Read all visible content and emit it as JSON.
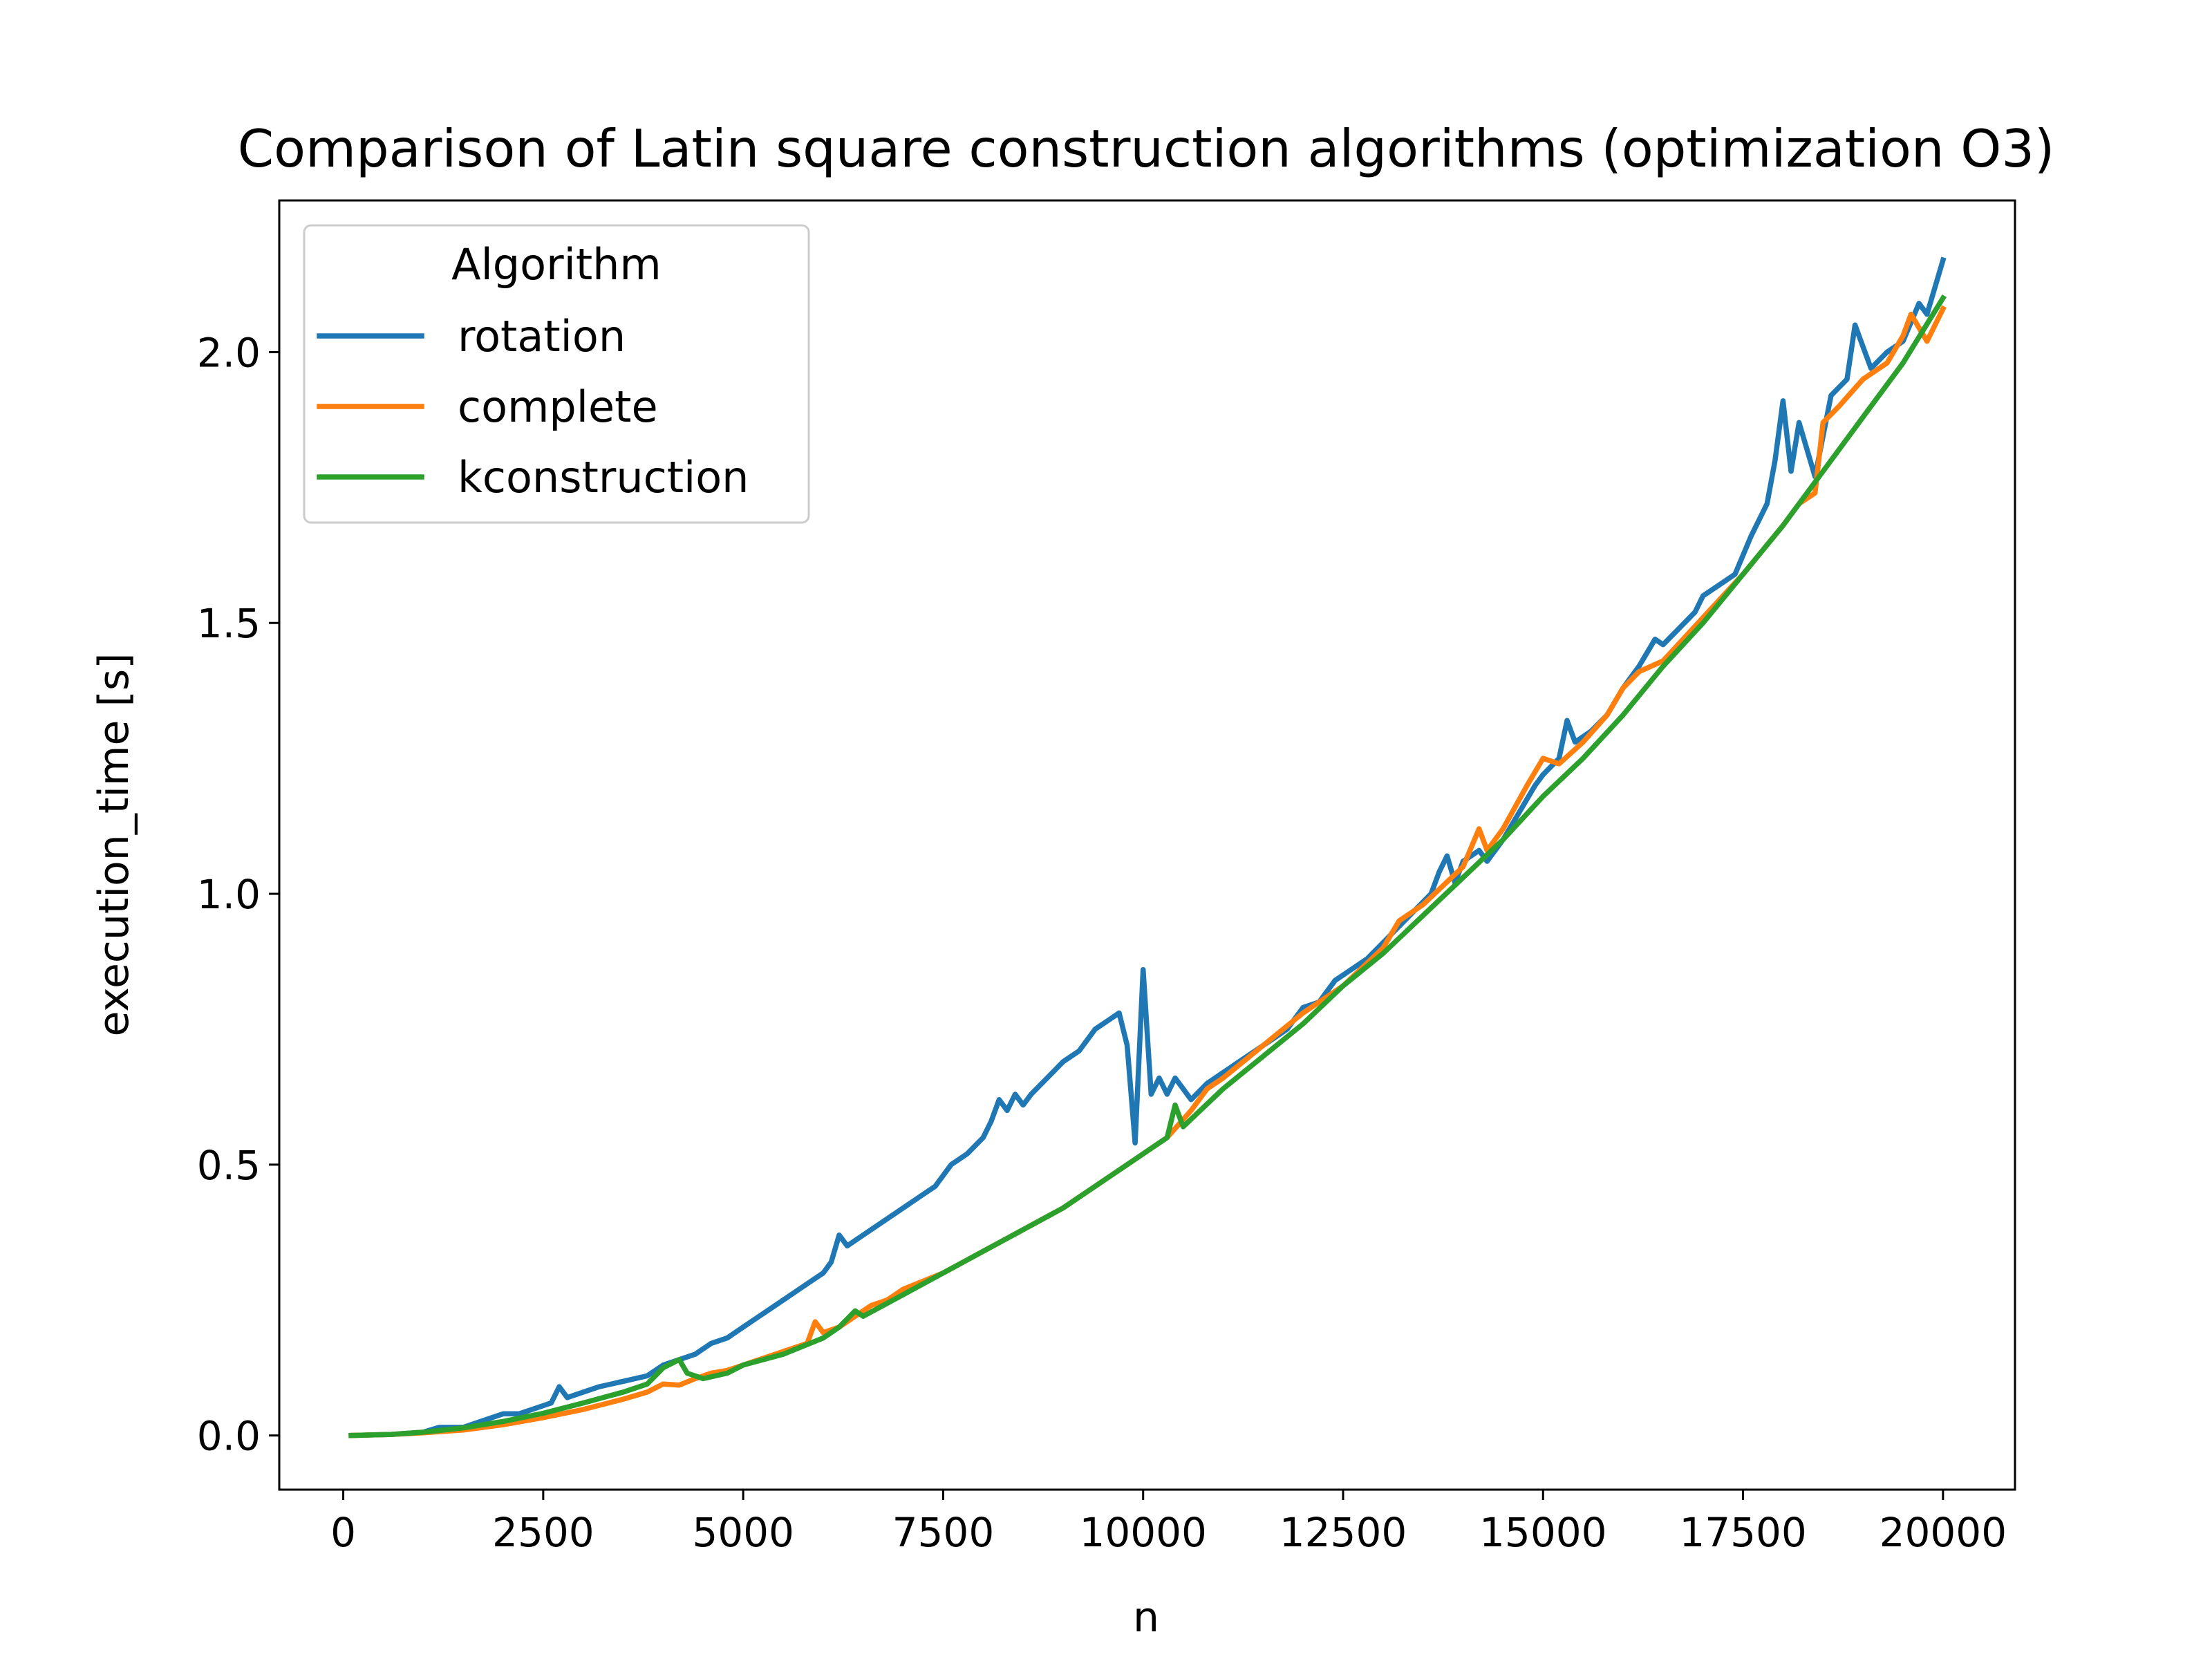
{
  "chart_data": {
    "type": "line",
    "title": "Comparison of Latin square construction algorithms (optimization O3)",
    "xlabel": "n",
    "ylabel": "execution_time [s]",
    "xlim": [
      -800,
      20900
    ],
    "ylim": [
      -0.1,
      2.28
    ],
    "xticks": [
      0,
      2500,
      5000,
      7500,
      10000,
      12500,
      15000,
      17500,
      20000
    ],
    "xtick_labels": [
      "0",
      "2500",
      "5000",
      "7500",
      "10000",
      "12500",
      "15000",
      "17500",
      "20000"
    ],
    "yticks": [
      0.0,
      0.5,
      1.0,
      1.5,
      2.0
    ],
    "ytick_labels": [
      "0.0",
      "0.5",
      "1.0",
      "1.5",
      "2.0"
    ],
    "grid": false,
    "legend": {
      "title": "Algorithm",
      "placement": "upper-left"
    },
    "series": [
      {
        "name": "rotation",
        "color": "#1f77b4",
        "points": [
          [
            100,
            0.0
          ],
          [
            600,
            0.002
          ],
          [
            1000,
            0.006
          ],
          [
            1200,
            0.015
          ],
          [
            1500,
            0.015
          ],
          [
            1800,
            0.03
          ],
          [
            2000,
            0.04
          ],
          [
            2200,
            0.04
          ],
          [
            2500,
            0.055
          ],
          [
            2600,
            0.06
          ],
          [
            2700,
            0.09
          ],
          [
            2800,
            0.07
          ],
          [
            3000,
            0.08
          ],
          [
            3200,
            0.09
          ],
          [
            3500,
            0.1
          ],
          [
            3800,
            0.11
          ],
          [
            4000,
            0.13
          ],
          [
            4200,
            0.14
          ],
          [
            4400,
            0.15
          ],
          [
            4600,
            0.17
          ],
          [
            4800,
            0.18
          ],
          [
            5000,
            0.2
          ],
          [
            5200,
            0.22
          ],
          [
            5400,
            0.24
          ],
          [
            5600,
            0.26
          ],
          [
            5800,
            0.28
          ],
          [
            6000,
            0.3
          ],
          [
            6100,
            0.32
          ],
          [
            6200,
            0.37
          ],
          [
            6300,
            0.35
          ],
          [
            6500,
            0.37
          ],
          [
            6700,
            0.39
          ],
          [
            6900,
            0.41
          ],
          [
            7000,
            0.42
          ],
          [
            7200,
            0.44
          ],
          [
            7400,
            0.46
          ],
          [
            7600,
            0.5
          ],
          [
            7800,
            0.52
          ],
          [
            8000,
            0.55
          ],
          [
            8100,
            0.58
          ],
          [
            8200,
            0.62
          ],
          [
            8300,
            0.6
          ],
          [
            8400,
            0.63
          ],
          [
            8500,
            0.61
          ],
          [
            8600,
            0.63
          ],
          [
            8800,
            0.66
          ],
          [
            9000,
            0.69
          ],
          [
            9200,
            0.71
          ],
          [
            9400,
            0.75
          ],
          [
            9600,
            0.77
          ],
          [
            9700,
            0.78
          ],
          [
            9800,
            0.72
          ],
          [
            9900,
            0.54
          ],
          [
            10000,
            0.86
          ],
          [
            10100,
            0.63
          ],
          [
            10200,
            0.66
          ],
          [
            10300,
            0.63
          ],
          [
            10400,
            0.66
          ],
          [
            10500,
            0.64
          ],
          [
            10600,
            0.62
          ],
          [
            10800,
            0.65
          ],
          [
            11000,
            0.67
          ],
          [
            11200,
            0.69
          ],
          [
            11400,
            0.71
          ],
          [
            11600,
            0.73
          ],
          [
            11800,
            0.75
          ],
          [
            12000,
            0.79
          ],
          [
            12200,
            0.8
          ],
          [
            12400,
            0.84
          ],
          [
            12600,
            0.86
          ],
          [
            12800,
            0.88
          ],
          [
            13000,
            0.91
          ],
          [
            13200,
            0.94
          ],
          [
            13400,
            0.97
          ],
          [
            13600,
            1.0
          ],
          [
            13700,
            1.04
          ],
          [
            13800,
            1.07
          ],
          [
            13900,
            1.02
          ],
          [
            14000,
            1.06
          ],
          [
            14200,
            1.08
          ],
          [
            14300,
            1.06
          ],
          [
            14500,
            1.1
          ],
          [
            14700,
            1.15
          ],
          [
            14900,
            1.2
          ],
          [
            15000,
            1.22
          ],
          [
            15200,
            1.25
          ],
          [
            15300,
            1.32
          ],
          [
            15400,
            1.28
          ],
          [
            15600,
            1.3
          ],
          [
            15800,
            1.33
          ],
          [
            16000,
            1.38
          ],
          [
            16200,
            1.42
          ],
          [
            16400,
            1.47
          ],
          [
            16500,
            1.46
          ],
          [
            16700,
            1.49
          ],
          [
            16900,
            1.52
          ],
          [
            17000,
            1.55
          ],
          [
            17200,
            1.57
          ],
          [
            17400,
            1.59
          ],
          [
            17600,
            1.66
          ],
          [
            17800,
            1.72
          ],
          [
            17900,
            1.8
          ],
          [
            18000,
            1.91
          ],
          [
            18100,
            1.78
          ],
          [
            18200,
            1.87
          ],
          [
            18400,
            1.77
          ],
          [
            18600,
            1.92
          ],
          [
            18800,
            1.95
          ],
          [
            18900,
            2.05
          ],
          [
            19000,
            2.01
          ],
          [
            19100,
            1.97
          ],
          [
            19300,
            2.0
          ],
          [
            19500,
            2.02
          ],
          [
            19700,
            2.09
          ],
          [
            19800,
            2.07
          ],
          [
            20000,
            2.17
          ]
        ]
      },
      {
        "name": "complete",
        "color": "#ff7f0e",
        "points": [
          [
            100,
            0.0
          ],
          [
            600,
            0.002
          ],
          [
            1000,
            0.005
          ],
          [
            1500,
            0.01
          ],
          [
            2000,
            0.02
          ],
          [
            2500,
            0.033
          ],
          [
            3000,
            0.048
          ],
          [
            3500,
            0.067
          ],
          [
            3800,
            0.08
          ],
          [
            4000,
            0.095
          ],
          [
            4200,
            0.093
          ],
          [
            4400,
            0.105
          ],
          [
            4600,
            0.115
          ],
          [
            4800,
            0.12
          ],
          [
            5000,
            0.13
          ],
          [
            5200,
            0.14
          ],
          [
            5500,
            0.155
          ],
          [
            5800,
            0.17
          ],
          [
            5900,
            0.21
          ],
          [
            6000,
            0.19
          ],
          [
            6200,
            0.2
          ],
          [
            6400,
            0.22
          ],
          [
            6600,
            0.24
          ],
          [
            6800,
            0.25
          ],
          [
            7000,
            0.27
          ],
          [
            7500,
            0.3
          ],
          [
            8000,
            0.34
          ],
          [
            8500,
            0.38
          ],
          [
            9000,
            0.42
          ],
          [
            9500,
            0.47
          ],
          [
            10000,
            0.52
          ],
          [
            10300,
            0.55
          ],
          [
            10600,
            0.6
          ],
          [
            10800,
            0.64
          ],
          [
            11000,
            0.66
          ],
          [
            11500,
            0.72
          ],
          [
            12000,
            0.78
          ],
          [
            12500,
            0.83
          ],
          [
            13000,
            0.9
          ],
          [
            13200,
            0.95
          ],
          [
            13500,
            0.98
          ],
          [
            14000,
            1.05
          ],
          [
            14200,
            1.12
          ],
          [
            14300,
            1.08
          ],
          [
            14500,
            1.12
          ],
          [
            14800,
            1.2
          ],
          [
            15000,
            1.25
          ],
          [
            15200,
            1.24
          ],
          [
            15500,
            1.28
          ],
          [
            15800,
            1.33
          ],
          [
            16000,
            1.38
          ],
          [
            16200,
            1.41
          ],
          [
            16500,
            1.43
          ],
          [
            17000,
            1.51
          ],
          [
            17500,
            1.59
          ],
          [
            18000,
            1.68
          ],
          [
            18200,
            1.72
          ],
          [
            18400,
            1.74
          ],
          [
            18500,
            1.87
          ],
          [
            18700,
            1.9
          ],
          [
            19000,
            1.95
          ],
          [
            19300,
            1.98
          ],
          [
            19500,
            2.03
          ],
          [
            19600,
            2.07
          ],
          [
            19800,
            2.02
          ],
          [
            20000,
            2.08
          ]
        ]
      },
      {
        "name": "kconstruction",
        "color": "#2ca02c",
        "points": [
          [
            100,
            0.0
          ],
          [
            600,
            0.002
          ],
          [
            1000,
            0.006
          ],
          [
            1500,
            0.014
          ],
          [
            2000,
            0.026
          ],
          [
            2500,
            0.041
          ],
          [
            3000,
            0.06
          ],
          [
            3500,
            0.08
          ],
          [
            3800,
            0.095
          ],
          [
            4000,
            0.125
          ],
          [
            4200,
            0.14
          ],
          [
            4300,
            0.115
          ],
          [
            4500,
            0.105
          ],
          [
            4800,
            0.115
          ],
          [
            5000,
            0.13
          ],
          [
            5500,
            0.15
          ],
          [
            6000,
            0.18
          ],
          [
            6200,
            0.2
          ],
          [
            6400,
            0.23
          ],
          [
            6500,
            0.22
          ],
          [
            7000,
            0.26
          ],
          [
            7500,
            0.3
          ],
          [
            8000,
            0.34
          ],
          [
            8500,
            0.38
          ],
          [
            9000,
            0.42
          ],
          [
            9500,
            0.47
          ],
          [
            10000,
            0.52
          ],
          [
            10300,
            0.55
          ],
          [
            10400,
            0.61
          ],
          [
            10500,
            0.57
          ],
          [
            11000,
            0.64
          ],
          [
            11500,
            0.7
          ],
          [
            12000,
            0.76
          ],
          [
            12500,
            0.83
          ],
          [
            13000,
            0.89
          ],
          [
            13500,
            0.96
          ],
          [
            14000,
            1.03
          ],
          [
            14500,
            1.1
          ],
          [
            15000,
            1.18
          ],
          [
            15500,
            1.25
          ],
          [
            16000,
            1.33
          ],
          [
            16500,
            1.42
          ],
          [
            17000,
            1.5
          ],
          [
            17500,
            1.59
          ],
          [
            18000,
            1.68
          ],
          [
            18500,
            1.78
          ],
          [
            19000,
            1.88
          ],
          [
            19500,
            1.98
          ],
          [
            20000,
            2.1
          ]
        ]
      }
    ]
  }
}
